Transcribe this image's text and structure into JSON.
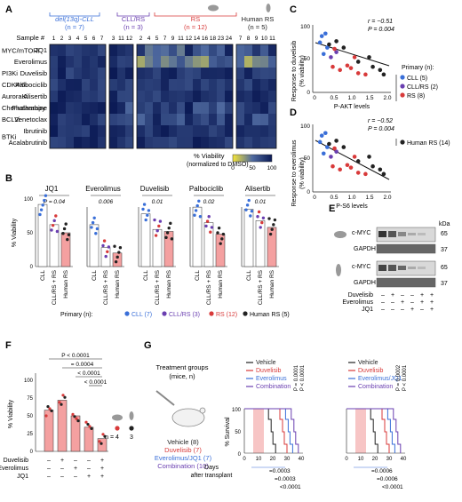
{
  "panels": {
    "A": "A",
    "B": "B",
    "C": "C",
    "D": "D",
    "E": "E",
    "F": "F",
    "G": "G"
  },
  "panelA": {
    "groups": [
      {
        "name": "del(13q)-CLL",
        "n": "(n = 7)",
        "color": "#3a6fd8"
      },
      {
        "name": "CLL/RS",
        "n": "(n = 3)",
        "color": "#6a3fb0"
      },
      {
        "name": "RS",
        "n": "(n = 12)",
        "color": "#d83a3a"
      },
      {
        "name": "Human RS",
        "n": "(n = 5)",
        "color": "#222222"
      }
    ],
    "sample_label": "Sample #",
    "sample_numbers": [
      "1",
      "2",
      "3",
      "4",
      "5",
      "6",
      "7",
      "3",
      "11",
      "12",
      "2",
      "4",
      "5",
      "7",
      "9",
      "11",
      "12",
      "14",
      "16",
      "18",
      "23",
      "24",
      "7",
      "8",
      "9",
      "10",
      "11"
    ],
    "drugs": [
      "JQ1",
      "Everolimus",
      "Duvelisib",
      "Palbociclib",
      "Alisertib",
      "Fludarabine",
      "Venetoclax",
      "Ibrutinib",
      "Acalabrutinib"
    ],
    "classes": [
      "MYC/mTORi",
      "PI3Ki",
      "CDK4/6i",
      "AuroraKi",
      "Chemotherapy",
      "BCL2i",
      "BTKi"
    ],
    "colorbar_title": "% Viability",
    "colorbar_subtitle": "(normalized to DMSO)",
    "colorbar_ticks": [
      "0",
      "50",
      "100"
    ]
  },
  "panelB": {
    "ylabel": "% Viability",
    "yticks": [
      "0",
      "50",
      "100"
    ],
    "xcats": [
      "CLL",
      "CLL/RS + RS",
      "Human RS"
    ],
    "subplots": [
      {
        "title": "JQ1",
        "p": "P = 0.04",
        "bars": [
          92,
          62,
          50
        ]
      },
      {
        "title": "Everolimus",
        "p": "0.006",
        "bars": [
          62,
          28,
          20
        ]
      },
      {
        "title": "Duvelisib",
        "p": "0.01",
        "bars": [
          78,
          55,
          52
        ]
      },
      {
        "title": "Palbociclib",
        "p": "0.02",
        "bars": [
          88,
          65,
          48
        ]
      },
      {
        "title": "Alisertib",
        "p": "0.01",
        "bars": [
          85,
          68,
          58
        ]
      }
    ],
    "legend_title": "Primary (n):",
    "legend": [
      {
        "label": "CLL (7)",
        "color": "#3a6fd8"
      },
      {
        "label": "CLL/RS (3)",
        "color": "#6a3fb0"
      },
      {
        "label": "RS (12)",
        "color": "#d83a3a"
      },
      {
        "label": "Human RS (5)",
        "color": "#222222"
      }
    ]
  },
  "panelC": {
    "ylabel": "Response to duvelisib",
    "ylabel2": "(% viability)",
    "xlabel": "P-AKT levels",
    "r": "r = −0.51",
    "p": "P = 0.004",
    "xticks": [
      "0",
      "0.5",
      "1.0",
      "1.5",
      "2.0"
    ],
    "yticks": [
      "0",
      "50",
      "100"
    ]
  },
  "panelD": {
    "ylabel": "Response to everolimus",
    "ylabel2": "(% viability)",
    "xlabel": "P-S6 levels",
    "r": "r = −0.52",
    "p": "P = 0.004",
    "xticks": [
      "0",
      "0.5",
      "1.0",
      "1.5",
      "2.0"
    ],
    "yticks": [
      "0",
      "50",
      "100"
    ]
  },
  "panelCD_legend": {
    "title": "Primary (n):",
    "items": [
      {
        "label": "CLL (5)",
        "color": "#3a6fd8"
      },
      {
        "label": "CLL/RS (2)",
        "color": "#6a3fb0"
      },
      {
        "label": "RS (8)",
        "color": "#d83a3a"
      },
      {
        "label": "Human RS (14)",
        "color": "#222222"
      }
    ]
  },
  "panelE": {
    "kda": "kDa",
    "blots": [
      {
        "rows": [
          "c-MYC",
          "GAPDH"
        ],
        "sizes": [
          "65",
          "37"
        ]
      },
      {
        "rows": [
          "c-MYC",
          "GAPDH"
        ],
        "sizes": [
          "65",
          "37"
        ]
      }
    ],
    "treatments": [
      {
        "name": "Duvelisib",
        "signs": [
          "–",
          "+",
          "–",
          "–",
          "+",
          "+"
        ]
      },
      {
        "name": "Everolimus",
        "signs": [
          "–",
          "–",
          "+",
          "–",
          "+",
          "+"
        ]
      },
      {
        "name": "JQ1",
        "signs": [
          "–",
          "–",
          "–",
          "+",
          "–",
          "+"
        ]
      }
    ]
  },
  "panelF": {
    "ylabel": "% Viability",
    "yticks": [
      "0",
      "25",
      "50",
      "75",
      "100"
    ],
    "pvals": [
      "P < 0.0001",
      "= 0.0004",
      "< 0.0001",
      "< 0.0001"
    ],
    "treatments": [
      {
        "name": "Duvelisib",
        "signs": [
          "–",
          "+",
          "–",
          "–",
          "+"
        ]
      },
      {
        "name": "Everolimus",
        "signs": [
          "–",
          "–",
          "+",
          "–",
          "+"
        ]
      },
      {
        "name": "JQ1",
        "signs": [
          "–",
          "–",
          "–",
          "+",
          "+"
        ]
      }
    ],
    "n_label": "n = 4",
    "n_label2": "3",
    "bars": [
      58,
      72,
      50,
      34,
      18
    ]
  },
  "panelG": {
    "groups_title": "Treatment groups",
    "groups_sub": "(mice, n)",
    "groups": [
      {
        "label": "Vehicle (8)",
        "color": "#222222"
      },
      {
        "label": "Duvelisib (7)",
        "color": "#d83a3a"
      },
      {
        "label": "Everolimus/JQ1 (7)",
        "color": "#3a6fd8"
      },
      {
        "label": "Combination (10)",
        "color": "#6a3fb0"
      }
    ],
    "legend": [
      {
        "label": "Vehicle",
        "color": "#222222"
      },
      {
        "label": "Duvelisib",
        "color": "#d83a3a"
      },
      {
        "label": "Everolimus",
        "color": "#3a6fd8"
      },
      {
        "label": "Combination",
        "color": "#6a3fb0"
      }
    ],
    "legend_right": [
      {
        "label": "Vehicle",
        "color": "#222222"
      },
      {
        "label": "Duvelisib",
        "color": "#d83a3a"
      },
      {
        "label": "Everolimus/JQ1",
        "color": "#3a6fd8"
      },
      {
        "label": "Combination",
        "color": "#6a3fb0"
      }
    ],
    "ylabel": "% Survival",
    "xlabel": "Days",
    "xlabel2": "after transplant",
    "xticks": [
      "0",
      "10",
      "20",
      "30",
      "40"
    ],
    "yticks": [
      "0",
      "50",
      "100"
    ],
    "left_p": [
      "P = 0.0001",
      "P < 0.0001",
      "=0.0003",
      "=0.0003",
      "<0.0001"
    ],
    "right_p": [
      "P = 0.0002",
      "P < 0.0001",
      "=0.0006",
      "=0.0006",
      "<0.0001"
    ]
  }
}
